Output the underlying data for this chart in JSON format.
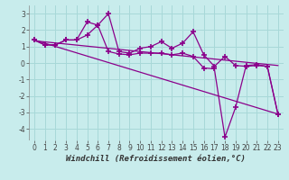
{
  "background_color": "#c8ecec",
  "grid_color": "#a8d8d8",
  "line_color": "#8b008b",
  "marker": "+",
  "marker_size": 4,
  "marker_linewidth": 1.2,
  "linewidth": 0.9,
  "xlabel": "Windchill (Refroidissement éolien,°C)",
  "xlabel_fontsize": 6.5,
  "tick_fontsize": 5.5,
  "xlim": [
    -0.5,
    23.5
  ],
  "ylim": [
    -4.7,
    3.5
  ],
  "yticks": [
    -4,
    -3,
    -2,
    -1,
    0,
    1,
    2,
    3
  ],
  "xticks": [
    0,
    1,
    2,
    3,
    4,
    5,
    6,
    7,
    8,
    9,
    10,
    11,
    12,
    13,
    14,
    15,
    16,
    17,
    18,
    19,
    20,
    21,
    22,
    23
  ],
  "series": [
    {
      "x": [
        0,
        1,
        2,
        3,
        4,
        5,
        6,
        7,
        8,
        9,
        10,
        11,
        12,
        13,
        14,
        15,
        16,
        17,
        18,
        19,
        20,
        21,
        22,
        23
      ],
      "y": [
        1.4,
        1.1,
        1.1,
        1.4,
        1.4,
        2.5,
        2.3,
        3.0,
        0.7,
        0.6,
        0.9,
        1.0,
        1.3,
        0.9,
        1.2,
        1.9,
        0.5,
        -0.2,
        0.4,
        -0.15,
        -0.2,
        -0.15,
        -0.2,
        -3.1
      ],
      "markers": true
    },
    {
      "x": [
        0,
        1,
        2,
        3,
        4,
        5,
        6,
        7,
        8,
        9,
        10,
        11,
        12,
        13,
        14,
        15,
        16,
        17,
        18,
        19,
        20,
        21,
        22,
        23
      ],
      "y": [
        1.4,
        1.1,
        1.1,
        1.4,
        1.4,
        1.7,
        2.3,
        0.7,
        0.55,
        0.5,
        0.6,
        0.6,
        0.6,
        0.5,
        0.6,
        0.4,
        -0.3,
        -0.35,
        -4.5,
        -2.7,
        -0.15,
        -0.1,
        -0.2,
        -3.1
      ],
      "markers": true
    },
    {
      "x": [
        0,
        23
      ],
      "y": [
        1.4,
        -3.1
      ],
      "markers": false
    },
    {
      "x": [
        0,
        23
      ],
      "y": [
        1.35,
        -0.15
      ],
      "markers": false
    }
  ]
}
